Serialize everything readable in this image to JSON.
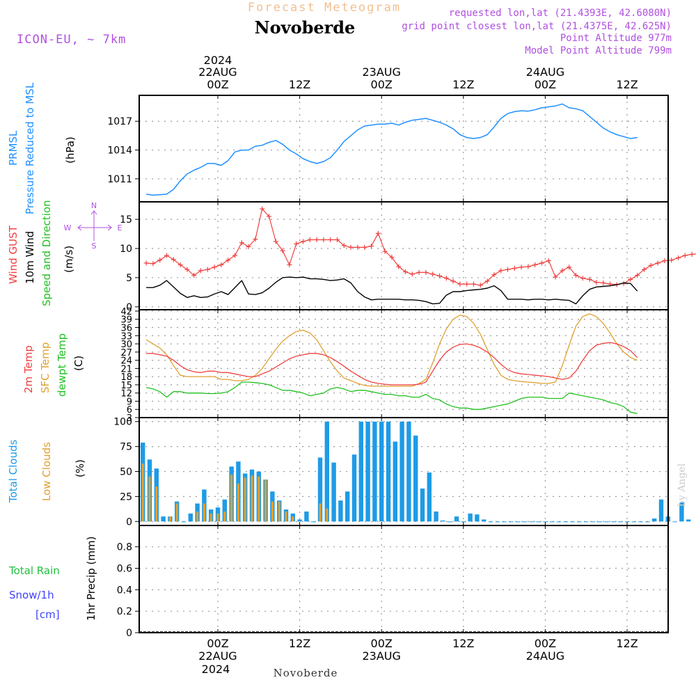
{
  "header": {
    "title": "Forecast Meteogram",
    "station": "Novoberde",
    "model": "ICON-EU, ~ 7km",
    "requested": "requested lon,lat (21.4393E, 42.6080N)",
    "gridpoint": "grid point closest lon,lat (21.4375E, 42.625N)",
    "point_alt": "Point Altitude 977m",
    "model_alt": "Model Point Altitude 799m",
    "credit": "by Angel"
  },
  "time_axis": {
    "year": "2024",
    "ticks": [
      {
        "h": 0,
        "hour": "00Z",
        "date": "22AUG"
      },
      {
        "h": 12,
        "hour": "12Z",
        "date": ""
      },
      {
        "h": 24,
        "hour": "00Z",
        "date": "23AUG"
      },
      {
        "h": 36,
        "hour": "12Z",
        "date": ""
      },
      {
        "h": 48,
        "hour": "00Z",
        "date": "24AUG"
      },
      {
        "h": 60,
        "hour": "12Z",
        "date": ""
      }
    ],
    "range_h": [
      -11,
      66
    ]
  },
  "colors": {
    "pressure": "#1e90ff",
    "gust": "#f04040",
    "wind": "#000000",
    "temp": "#f04040",
    "sfc": "#e0a030",
    "dew": "#20c020",
    "cloud_total": "#1e9be6",
    "cloud_low": "#e0a030",
    "title": "#f0c090",
    "label_purple": "#b050e0",
    "precip_label": "#20c040",
    "snow_label": "#4040ff",
    "grid": "#999999"
  },
  "chart_data": [
    {
      "type": "line",
      "panel": "pressure",
      "title": "PRMSL Pressure Reduced to MSL",
      "ylabel_parts": [
        "PRMSL",
        "Pressure Reduced to MSL"
      ],
      "unit": "(hPa)",
      "ylim": [
        1008.6,
        1019.7
      ],
      "yticks": [
        1011,
        1014,
        1017
      ],
      "series": [
        {
          "name": "PRMSL",
          "x_hours_from": -10.5,
          "step": 1,
          "values": [
            1009.4,
            1009.3,
            1009.35,
            1009.4,
            1009.9,
            1010.8,
            1011.5,
            1011.9,
            1012.2,
            1012.6,
            1012.6,
            1012.4,
            1012.9,
            1013.8,
            1014.0,
            1014.0,
            1014.4,
            1014.5,
            1014.8,
            1015.0,
            1014.6,
            1014.0,
            1013.6,
            1013.1,
            1012.8,
            1012.6,
            1012.8,
            1013.2,
            1014.0,
            1014.9,
            1015.5,
            1016.1,
            1016.5,
            1016.6,
            1016.7,
            1016.7,
            1016.8,
            1016.6,
            1016.9,
            1017.1,
            1017.2,
            1017.3,
            1017.1,
            1016.9,
            1016.6,
            1016.2,
            1015.6,
            1015.3,
            1015.2,
            1015.3,
            1015.6,
            1016.4,
            1017.3,
            1017.8,
            1018.0,
            1018.1,
            1018.05,
            1018.2,
            1018.4,
            1018.5,
            1018.6,
            1018.8,
            1018.4,
            1018.3,
            1018.1,
            1017.5,
            1016.9,
            1016.3,
            1015.9,
            1015.6,
            1015.4,
            1015.2,
            1015.3
          ]
        }
      ]
    },
    {
      "type": "line",
      "panel": "wind",
      "ylabel_parts": [
        "Wind GUST",
        "10m Wind",
        "Speed and Direction"
      ],
      "unit": "(m/s)",
      "compass": {
        "n": "N",
        "s": "S",
        "w": "W",
        "e": "E"
      },
      "ylim": [
        -0.5,
        18
      ],
      "yticks": [
        0,
        5,
        10,
        15
      ],
      "series": [
        {
          "name": "Wind GUST",
          "x_hours_from": -10.5,
          "step": 1,
          "values": [
            7.5,
            7.4,
            8.0,
            8.8,
            8.1,
            7.2,
            6.4,
            5.4,
            6.2,
            6.4,
            6.8,
            7.2,
            8.0,
            8.8,
            11.0,
            10.3,
            11.6,
            16.8,
            15.5,
            11.2,
            9.6,
            7.2,
            10.8,
            11.2,
            11.5,
            11.5,
            11.5,
            11.5,
            11.5,
            10.5,
            10.2,
            10.2,
            10.2,
            10.4,
            12.6,
            9.5,
            8.5,
            6.9,
            6.0,
            5.6,
            5.9,
            5.9,
            5.6,
            5.3,
            4.9,
            4.4,
            3.9,
            3.9,
            3.9,
            3.7,
            4.4,
            5.5,
            6.2,
            6.4,
            6.6,
            6.8,
            6.9,
            7.2,
            7.5,
            7.9,
            5.1,
            6.2,
            6.8,
            5.4,
            4.9,
            4.7,
            4.2,
            4.1,
            3.9,
            3.8,
            4.0,
            4.7,
            5.4,
            6.4,
            7.1,
            7.5,
            7.9,
            8.0,
            8.4,
            8.8,
            9.0,
            9.1,
            8.8
          ]
        },
        {
          "name": "10m Wind",
          "x_hours_from": -10.5,
          "step": 1,
          "values": [
            3.3,
            3.3,
            3.7,
            4.5,
            3.4,
            2.3,
            1.6,
            1.9,
            1.6,
            1.7,
            2.2,
            2.6,
            2.1,
            3.3,
            4.5,
            2.2,
            2.1,
            2.4,
            3.2,
            4.2,
            5.0,
            5.1,
            5.0,
            5.1,
            4.8,
            4.8,
            4.7,
            4.5,
            4.6,
            4.8,
            4.1,
            2.6,
            1.7,
            1.2,
            1.3,
            1.3,
            1.3,
            1.3,
            1.2,
            1.2,
            1.1,
            0.9,
            0.5,
            0.6,
            2.0,
            2.6,
            2.6,
            2.8,
            2.9,
            3.0,
            3.2,
            3.6,
            2.8,
            1.3,
            1.3,
            1.3,
            1.2,
            1.3,
            1.3,
            1.2,
            1.3,
            1.2,
            1.1,
            0.5,
            1.9,
            3.0,
            3.4,
            3.5,
            3.6,
            3.8,
            4.1,
            4.0,
            2.7
          ]
        }
      ]
    },
    {
      "type": "line",
      "panel": "temperature",
      "ylabel_parts": [
        "2m Temp",
        "SFC Temp",
        "dewpt Temp"
      ],
      "unit": "(C)",
      "ylim": [
        3,
        42.5
      ],
      "yticks": [
        3,
        6,
        9,
        12,
        15,
        18,
        21,
        24,
        27,
        30,
        33,
        36,
        39,
        42
      ],
      "series": [
        {
          "name": "2m Temp",
          "x_hours_from": -10.5,
          "step": 1,
          "values": [
            26.5,
            26.5,
            26.0,
            25.5,
            24.0,
            22.0,
            20.5,
            19.8,
            19.5,
            20.0,
            20.0,
            19.5,
            19.5,
            19.0,
            18.5,
            18.0,
            18.0,
            19.0,
            20.0,
            21.5,
            23.0,
            24.5,
            25.5,
            26.0,
            26.5,
            26.5,
            26.0,
            25.0,
            23.5,
            21.8,
            20.0,
            18.5,
            17.0,
            16.0,
            15.5,
            15.2,
            15.0,
            15.0,
            15.0,
            15.0,
            15.2,
            16.0,
            20.0,
            24.0,
            27.0,
            28.8,
            29.8,
            30.0,
            29.5,
            28.5,
            27.0,
            25.0,
            22.5,
            20.5,
            19.5,
            19.0,
            18.8,
            18.5,
            18.3,
            18.0,
            17.5,
            17.0,
            17.5,
            20.0,
            24.0,
            27.5,
            29.5,
            30.2,
            30.5,
            30.0,
            29.0,
            27.5,
            25.0
          ]
        },
        {
          "name": "SFC Temp",
          "x_hours_from": -10.5,
          "step": 1,
          "values": [
            31.5,
            30.0,
            28.5,
            26.0,
            22.0,
            18.5,
            18.0,
            18.0,
            18.0,
            18.0,
            18.0,
            17.0,
            17.0,
            16.5,
            16.5,
            17.0,
            18.5,
            21.0,
            24.5,
            28.0,
            31.0,
            33.0,
            34.5,
            35.0,
            34.0,
            31.5,
            27.5,
            23.5,
            20.0,
            17.5,
            16.5,
            15.5,
            14.8,
            14.5,
            14.5,
            14.5,
            14.5,
            14.5,
            14.5,
            14.5,
            15.5,
            17.0,
            23.0,
            30.0,
            35.5,
            39.0,
            40.5,
            40.0,
            37.5,
            33.5,
            28.0,
            22.5,
            18.5,
            17.0,
            16.5,
            16.2,
            16.0,
            15.8,
            15.5,
            15.5,
            16.0,
            22.0,
            29.5,
            36.5,
            40.0,
            41.0,
            40.0,
            37.5,
            34.0,
            30.0,
            27.0,
            25.0,
            24.0
          ]
        },
        {
          "name": "dewpt Temp",
          "x_hours_from": -10.5,
          "step": 1,
          "values": [
            14.0,
            13.5,
            12.5,
            10.5,
            12.5,
            12.5,
            12.0,
            12.0,
            12.0,
            11.8,
            11.8,
            12.0,
            12.5,
            14.0,
            16.0,
            16.0,
            15.8,
            15.5,
            15.0,
            14.0,
            13.0,
            13.0,
            12.5,
            12.0,
            11.0,
            11.5,
            12.0,
            13.5,
            14.0,
            13.5,
            12.5,
            13.0,
            13.0,
            12.5,
            12.0,
            11.5,
            11.5,
            11.0,
            11.0,
            10.5,
            10.5,
            11.5,
            10.0,
            9.5,
            8.0,
            7.0,
            6.5,
            6.5,
            6.0,
            6.0,
            6.5,
            7.0,
            7.5,
            8.0,
            9.0,
            10.0,
            10.5,
            10.5,
            10.5,
            10.0,
            10.0,
            10.0,
            12.0,
            11.5,
            11.0,
            10.5,
            10.0,
            9.5,
            8.5,
            8.0,
            7.0,
            5.0,
            4.5
          ]
        }
      ]
    },
    {
      "type": "bar",
      "panel": "clouds",
      "ylabel_parts": [
        "Total Clouds",
        "Low Clouds"
      ],
      "unit": "(%)",
      "ylim": [
        -4,
        104
      ],
      "yticks": [
        0,
        25,
        50,
        75,
        100
      ],
      "series": [
        {
          "name": "Total Clouds",
          "x_hours_from": -11,
          "step": 1,
          "values": [
            79,
            62,
            53,
            5,
            5,
            20,
            0,
            8,
            18,
            32,
            12,
            14,
            22,
            55,
            60,
            48,
            52,
            50,
            42,
            30,
            21,
            12,
            8,
            2,
            10,
            0,
            64,
            100,
            59,
            21,
            30,
            67,
            100,
            100,
            100,
            100,
            100,
            80,
            100,
            100,
            86,
            33,
            49,
            10,
            1,
            0,
            5,
            0,
            8,
            7,
            2,
            0,
            0,
            0,
            0,
            0,
            0,
            0,
            0,
            0,
            0,
            0,
            0,
            0,
            0,
            0,
            0,
            0,
            0,
            0,
            0,
            0,
            0,
            0,
            0,
            3,
            22,
            5,
            0,
            19,
            2
          ]
        },
        {
          "name": "Low Clouds",
          "x_hours_from": -11,
          "step": 1,
          "values": [
            58,
            45,
            35,
            0,
            5,
            18,
            0,
            0,
            10,
            18,
            8,
            8,
            10,
            47,
            38,
            44,
            46,
            45,
            42,
            20,
            20,
            10,
            5,
            0,
            0,
            0,
            18,
            13,
            0,
            0,
            0,
            0,
            0,
            0,
            0,
            0,
            0,
            0,
            0,
            0,
            0,
            0,
            0,
            0,
            0,
            0,
            0,
            0,
            0,
            0,
            0,
            0,
            0,
            0,
            0,
            0,
            0,
            0,
            0,
            0,
            0,
            0,
            0,
            0,
            0,
            0,
            0,
            0,
            0,
            0,
            0,
            0,
            0,
            0,
            0,
            0,
            0,
            0,
            0,
            0,
            0
          ]
        }
      ]
    },
    {
      "type": "bar",
      "panel": "precipitation",
      "ylabel_parts": [
        "Total Rain",
        "Snow/1h",
        "[cm]"
      ],
      "unit": "1hr Precip (mm)",
      "ylim": [
        0,
        0.999
      ],
      "yticks": [
        0,
        0.2,
        0.4,
        0.6,
        0.8
      ],
      "series": [
        {
          "name": "1hr Precip",
          "x_hours_from": -11,
          "step": 1,
          "values": []
        }
      ]
    }
  ]
}
